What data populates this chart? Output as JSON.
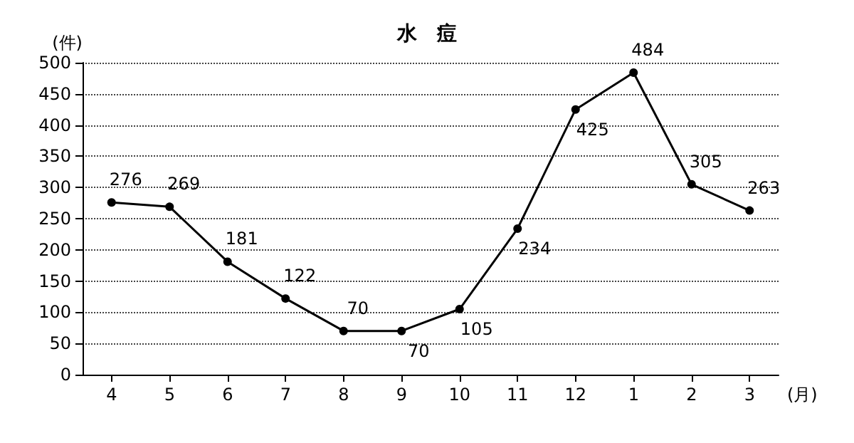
{
  "chart_data": {
    "type": "line",
    "title": "水　痘",
    "ylabel": "(件)",
    "xlabel": "(月)",
    "categories": [
      "4",
      "5",
      "6",
      "7",
      "8",
      "9",
      "10",
      "11",
      "12",
      "1",
      "2",
      "3"
    ],
    "series": [
      {
        "color": "#000000",
        "values": [
          276,
          269,
          181,
          122,
          70,
          70,
          105,
          234,
          425,
          484,
          305,
          263
        ]
      }
    ],
    "ylim": [
      0,
      500
    ],
    "yticks": [
      0,
      50,
      100,
      150,
      200,
      250,
      300,
      350,
      400,
      450,
      500
    ],
    "grid": "y",
    "marker": "circle",
    "line_style": "solid",
    "data_labels": true
  }
}
